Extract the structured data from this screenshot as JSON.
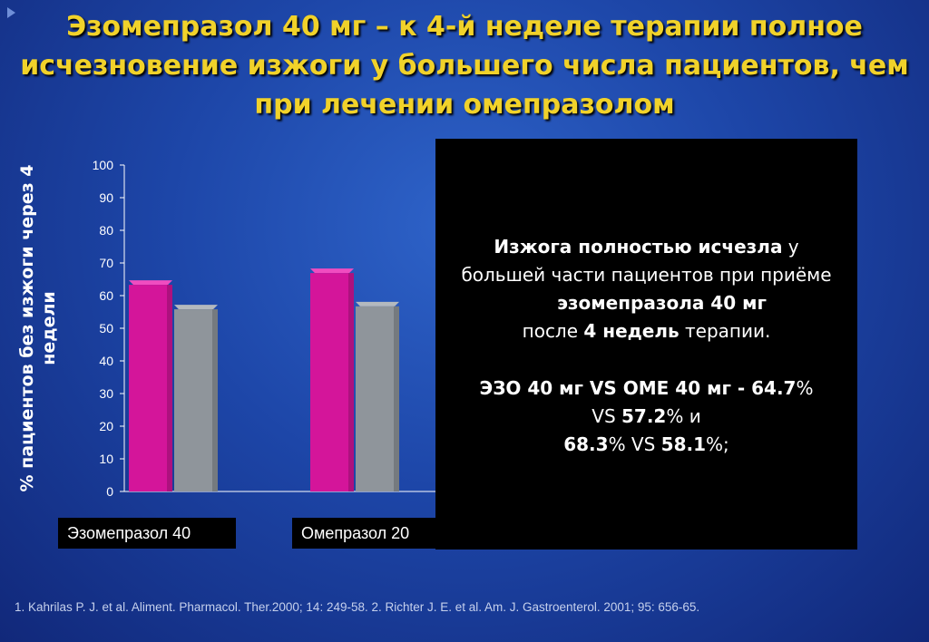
{
  "title": "Эзомепразол 40 мг – к 4-й неделе терапии полное исчезновение изжоги у большего числа пациентов, чем при лечении омепразолом",
  "chart_data": {
    "type": "bar",
    "ylabel": "% пациентов без изжоги через 4 недели",
    "ylim": [
      0,
      100
    ],
    "yticks": [
      0,
      10,
      20,
      30,
      40,
      50,
      60,
      70,
      80,
      90,
      100
    ],
    "categories": [
      "Эзомепразол 40",
      "Омепразол 20"
    ],
    "series": [
      {
        "values": [
          64.7,
          68.3
        ],
        "color": "#d4159a"
      },
      {
        "values": [
          57.2,
          58.1
        ],
        "color": "#8f959b"
      }
    ]
  },
  "callout": {
    "l1_bold": "Изжога полностью исчезла",
    "l1_rest": " у большей части пациентов при приёме",
    "l2_bold": "эзомепразола 40 мг",
    "l3_pre": "после ",
    "l3_bold": "4 недель",
    "l3_post": " терапии.",
    "s1_bold": "ЭЗО 40 мг VS ОМЕ 40 мг - 64.7",
    "s1_pct": "%",
    "s2_pre": "VS ",
    "s2_bold": "57.2",
    "s2_post": "% и",
    "s3_bold1": "68.3",
    "s3_mid": "% VS ",
    "s3_bold2": "58.1",
    "s3_post": "%;"
  },
  "footer": "1. Kahrilas P. J. et al. Aliment. Pharmacol. Ther.2000; 14: 249-58. 2. Richter J. E. et al. Am. J. Gastroenterol. 2001; 95: 656-65."
}
